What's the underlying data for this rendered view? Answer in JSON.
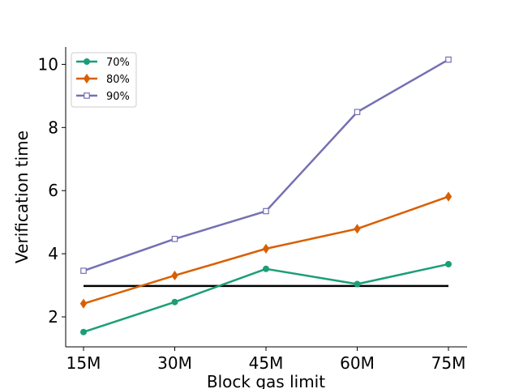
{
  "chart_data": {
    "type": "line",
    "title": "",
    "xlabel": "Block gas limit",
    "ylabel": "Verification time",
    "categories": [
      "15M",
      "30M",
      "45M",
      "60M",
      "75M"
    ],
    "ylim": [
      1.05,
      10.55
    ],
    "yticks": [
      2,
      4,
      6,
      8,
      10
    ],
    "legend_position": "top-left",
    "grid": false,
    "series": [
      {
        "name": "70%",
        "color": "#1b9e77",
        "marker": "circle",
        "values": [
          1.52,
          2.47,
          3.52,
          3.04,
          3.67
        ]
      },
      {
        "name": "80%",
        "color": "#d95f02",
        "marker": "diamond",
        "values": [
          2.42,
          3.31,
          4.16,
          4.79,
          5.81
        ]
      },
      {
        "name": "90%",
        "color": "#7570b3",
        "marker": "square-open",
        "values": [
          3.46,
          4.47,
          5.35,
          8.49,
          10.15
        ]
      }
    ],
    "reference_line": {
      "value": 2.98,
      "color": "#000000"
    }
  }
}
